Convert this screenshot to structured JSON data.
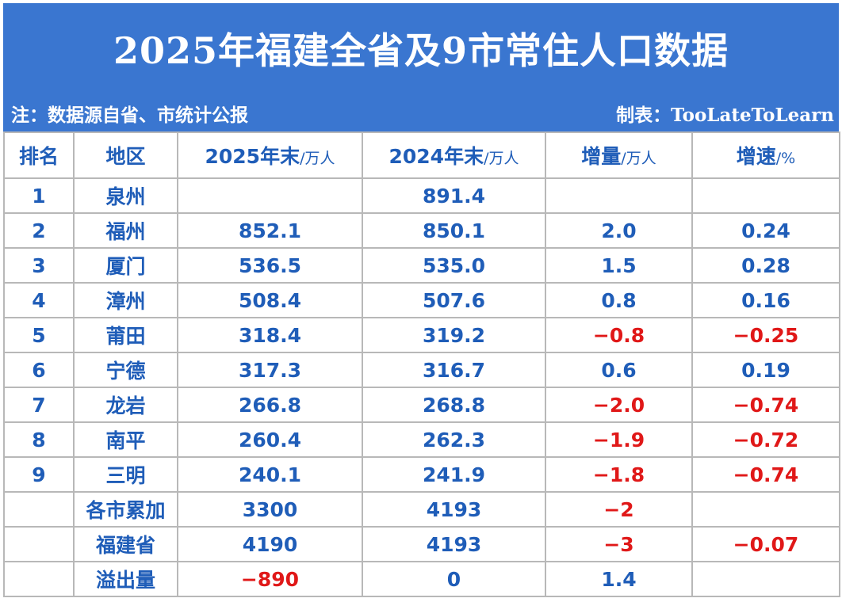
{
  "header": {
    "title": "2025年福建全省及9市常住人口数据",
    "note": "注：数据源自省、市统计公报",
    "maker_label": "制表：",
    "maker_name": "TooLateToLearn"
  },
  "colors": {
    "banner": "#3a76d0",
    "text_blue": "#1f5db8",
    "negative_red": "#e01818"
  },
  "table": {
    "columns": [
      {
        "label": "排名",
        "unit": ""
      },
      {
        "label": "地区",
        "unit": ""
      },
      {
        "label": "2025年末",
        "unit": "/万人"
      },
      {
        "label": "2024年末",
        "unit": "/万人"
      },
      {
        "label": "增量",
        "unit": "/万人"
      },
      {
        "label": "增速",
        "unit": "/%"
      }
    ],
    "rows": [
      [
        "1",
        "泉州",
        "",
        "891.4",
        "",
        ""
      ],
      [
        "2",
        "福州",
        "852.1",
        "850.1",
        "2.0",
        "0.24"
      ],
      [
        "3",
        "厦门",
        "536.5",
        "535.0",
        "1.5",
        "0.28"
      ],
      [
        "4",
        "漳州",
        "508.4",
        "507.6",
        "0.8",
        "0.16"
      ],
      [
        "5",
        "莆田",
        "318.4",
        "319.2",
        "−0.8",
        "−0.25"
      ],
      [
        "6",
        "宁德",
        "317.3",
        "316.7",
        "0.6",
        "0.19"
      ],
      [
        "7",
        "龙岩",
        "266.8",
        "268.8",
        "−2.0",
        "−0.74"
      ],
      [
        "8",
        "南平",
        "260.4",
        "262.3",
        "−1.9",
        "−0.72"
      ],
      [
        "9",
        "三明",
        "240.1",
        "241.9",
        "−1.8",
        "−0.74"
      ],
      [
        "",
        "各市累加",
        "3300",
        "4193",
        "−2",
        ""
      ],
      [
        "",
        "福建省",
        "4190",
        "4193",
        "−3",
        "−0.07"
      ],
      [
        "",
        "溢出量",
        "−890",
        "0",
        "1.4",
        ""
      ]
    ]
  }
}
